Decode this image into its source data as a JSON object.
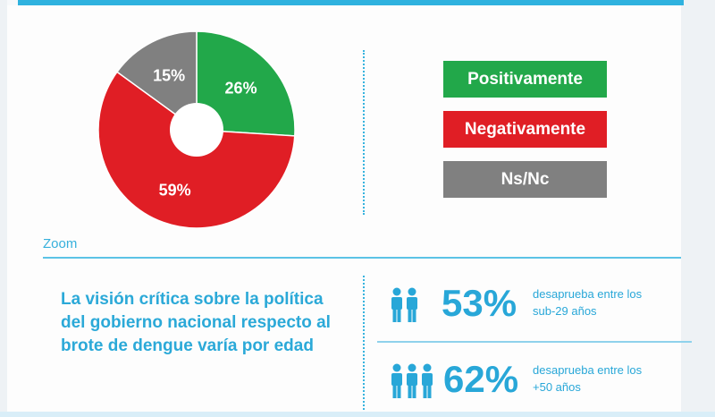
{
  "chart_data": {
    "type": "pie",
    "style": "donut",
    "categories": [
      "Positivamente",
      "Negativamente",
      "Ns/Nc"
    ],
    "values": [
      26,
      59,
      15
    ],
    "labels": [
      "26%",
      "59%",
      "15%"
    ],
    "colors": [
      "#22a84a",
      "#e01e25",
      "#808080"
    ]
  },
  "legend": [
    {
      "label": "Positivamente",
      "color": "#22a84a"
    },
    {
      "label": "Negativamente",
      "color": "#e01e25"
    },
    {
      "label": "Ns/Nc",
      "color": "#808080"
    }
  ],
  "zoom": {
    "label": "Zoom"
  },
  "statement": "La visión crítica sobre la política del gobierno nacional respecto al brote de dengue varía por edad",
  "stats": [
    {
      "icon": "two-people-icon",
      "people": 2,
      "value": "53%",
      "desc_line1": "desaprueba entre los",
      "desc_line2": "sub-29 años"
    },
    {
      "icon": "three-people-icon",
      "people": 3,
      "value": "62%",
      "desc_line1": "desaprueba entre los",
      "desc_line2": "+50 años"
    }
  ],
  "accent": "#2fb2df"
}
